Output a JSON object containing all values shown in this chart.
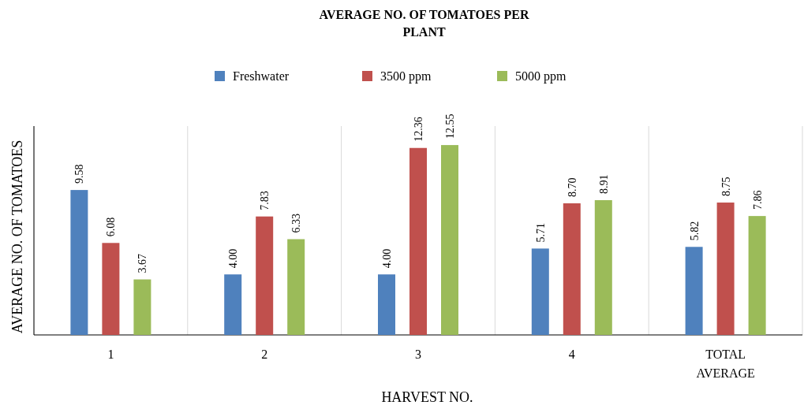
{
  "chart_data": {
    "type": "bar",
    "title": "AVERAGE NO. OF TOMATOES PER PLANT",
    "xlabel": "HARVEST NO.",
    "ylabel": "AVERAGE NO. OF TOMATOES",
    "categories": [
      "1",
      "2",
      "3",
      "4",
      "TOTAL AVERAGE"
    ],
    "series": [
      {
        "name": "Freshwater",
        "color": "#4f81bd",
        "values": [
          9.58,
          4.0,
          4.0,
          5.71,
          5.82
        ],
        "value_labels": [
          "9.58",
          "4.00",
          "4.00",
          "5.71",
          "5.82"
        ]
      },
      {
        "name": "3500 ppm",
        "color": "#c0504d",
        "values": [
          6.08,
          7.83,
          12.36,
          8.7,
          8.75
        ],
        "value_labels": [
          "6.08",
          "7.83",
          "12.36",
          "8.70",
          "8.75"
        ]
      },
      {
        "name": "5000 ppm",
        "color": "#9bbb59",
        "values": [
          3.67,
          6.33,
          12.55,
          8.91,
          7.86
        ],
        "value_labels": [
          "3.67",
          "6.33",
          "12.55",
          "8.91",
          "7.86"
        ]
      }
    ],
    "grid": "x",
    "legend": "top"
  }
}
